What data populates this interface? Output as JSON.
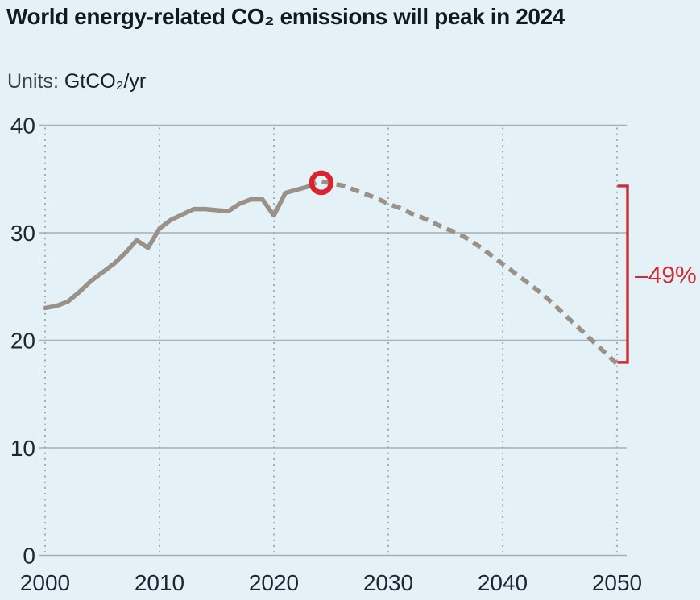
{
  "header": {
    "title": "World energy-related CO₂ emissions will peak in 2024",
    "units_prefix": "Units:",
    "units_value": "GtCO₂/yr"
  },
  "chart_data": {
    "type": "line",
    "title": "World energy-related CO₂ emissions will peak in 2024",
    "ylabel": "GtCO₂/yr",
    "xlabel": "",
    "xlim": [
      2000,
      2050
    ],
    "ylim": [
      0,
      40
    ],
    "x_ticks": [
      2000,
      2010,
      2020,
      2030,
      2040,
      2050
    ],
    "y_ticks": [
      0,
      10,
      20,
      30,
      40
    ],
    "grid": {
      "horizontal": "solid",
      "vertical": "dotted"
    },
    "legend": "none",
    "series": [
      {
        "name": "historical-emissions",
        "line_style": "solid",
        "color": "#9a9189",
        "x": [
          2000,
          2001,
          2002,
          2003,
          2004,
          2005,
          2006,
          2007,
          2008,
          2009,
          2010,
          2011,
          2012,
          2013,
          2014,
          2015,
          2016,
          2017,
          2018,
          2019,
          2020,
          2021,
          2022,
          2023
        ],
        "y": [
          23.0,
          23.2,
          23.6,
          24.5,
          25.5,
          26.3,
          27.1,
          28.1,
          29.3,
          28.6,
          30.4,
          31.2,
          31.7,
          32.2,
          32.2,
          32.1,
          32.0,
          32.7,
          33.1,
          33.1,
          31.6,
          33.7,
          34.0,
          34.3
        ]
      },
      {
        "name": "forecast-emissions",
        "line_style": "dashed",
        "color": "#9a9189",
        "x": [
          2023,
          2024,
          2025,
          2026,
          2027,
          2028,
          2029,
          2030,
          2031,
          2032,
          2033,
          2034,
          2035,
          2036,
          2037,
          2038,
          2039,
          2040,
          2041,
          2042,
          2043,
          2044,
          2045,
          2046,
          2047,
          2048,
          2049,
          2050
        ],
        "y": [
          34.3,
          34.8,
          34.6,
          34.4,
          34.0,
          33.6,
          33.2,
          32.7,
          32.3,
          31.8,
          31.4,
          30.9,
          30.4,
          30.0,
          29.4,
          28.7,
          27.9,
          27.1,
          26.3,
          25.5,
          24.7,
          23.8,
          22.8,
          21.8,
          20.8,
          19.8,
          18.8,
          17.8
        ]
      }
    ],
    "annotations": {
      "peak_marker": {
        "shape": "ring",
        "x": 2024,
        "y": 34.8,
        "color": "#da2430"
      },
      "decline_bracket": {
        "label": "–49%",
        "at_x": 2050,
        "from_value": 34.8,
        "to_value": 17.8,
        "color": "#d22b38"
      }
    },
    "colors": {
      "background": "#e4f1f7",
      "line": "#9a9189",
      "accent_red": "#d22b38",
      "grid": "#a3b0b6",
      "grid_dots": "#9fabb2",
      "text": "#1d272f"
    }
  }
}
